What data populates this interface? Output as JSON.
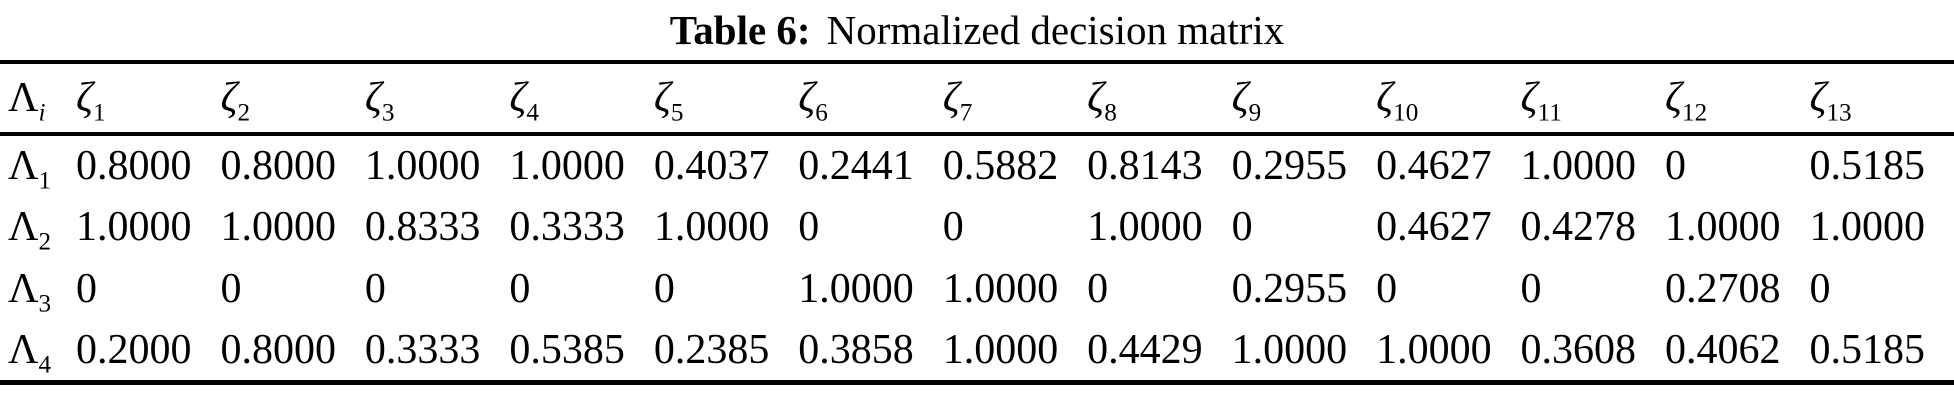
{
  "caption": {
    "label": "Table 6:",
    "text": "Normalized decision matrix"
  },
  "table": {
    "corner": {
      "symbol": "Λ",
      "subscript": "i"
    },
    "column_symbol": "ζ",
    "column_subscripts": [
      "1",
      "2",
      "3",
      "4",
      "5",
      "6",
      "7",
      "8",
      "9",
      "10",
      "11",
      "12",
      "13"
    ],
    "row_symbol": "Λ",
    "rows": [
      {
        "subscript": "1",
        "values": [
          "0.8000",
          "0.8000",
          "1.0000",
          "1.0000",
          "0.4037",
          "0.2441",
          "0.5882",
          "0.8143",
          "0.2955",
          "0.4627",
          "1.0000",
          "0",
          "0.5185"
        ]
      },
      {
        "subscript": "2",
        "values": [
          "1.0000",
          "1.0000",
          "0.8333",
          "0.3333",
          "1.0000",
          "0",
          "0",
          "1.0000",
          "0",
          "0.4627",
          "0.4278",
          "1.0000",
          "1.0000"
        ]
      },
      {
        "subscript": "3",
        "values": [
          "0",
          "0",
          "0",
          "0",
          "0",
          "1.0000",
          "1.0000",
          "0",
          "0.2955",
          "0",
          "0",
          "0.2708",
          "0"
        ]
      },
      {
        "subscript": "4",
        "values": [
          "0.2000",
          "0.8000",
          "0.3333",
          "0.5385",
          "0.2385",
          "0.3858",
          "1.0000",
          "0.4429",
          "1.0000",
          "1.0000",
          "0.3608",
          "0.4062",
          "0.5185"
        ]
      }
    ]
  },
  "colors": {
    "background": "#ffffff",
    "text": "#000000",
    "rule": "#000000"
  }
}
